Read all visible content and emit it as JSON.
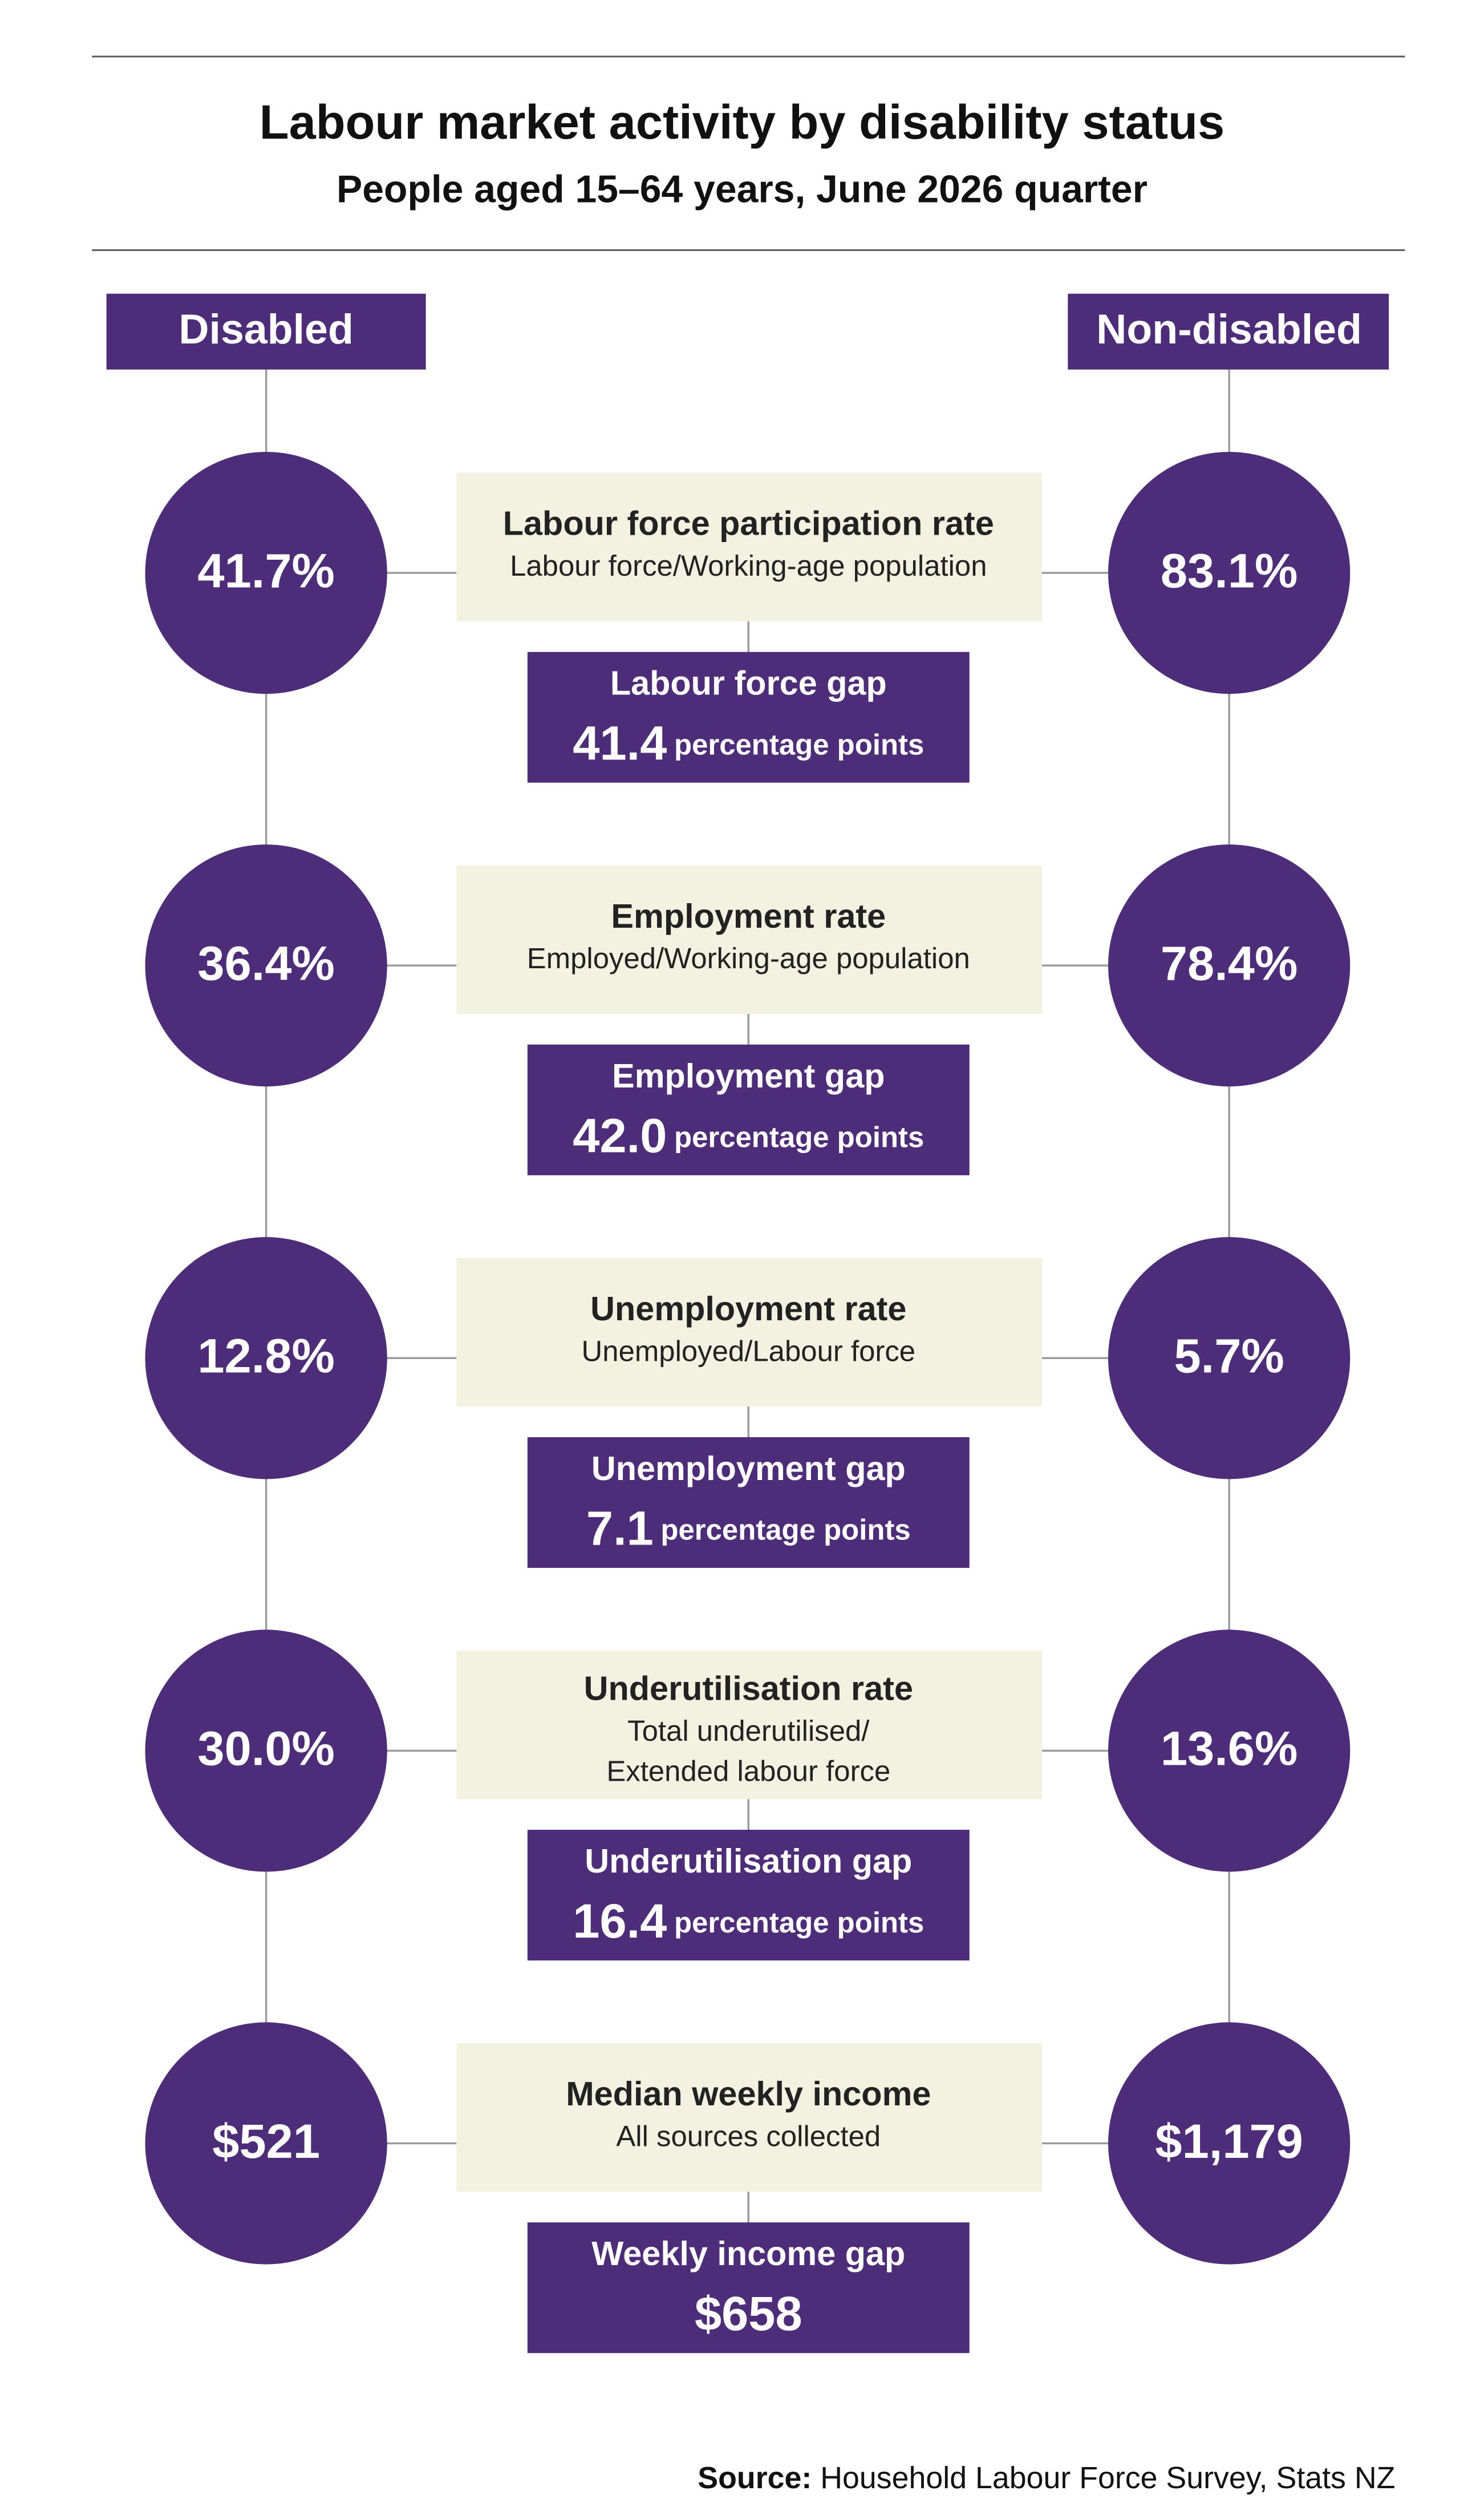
{
  "header": {
    "title": "Labour market activity by disability status",
    "subtitle": "People aged 15–64 years, June 2026 quarter"
  },
  "columns": {
    "left": "Disabled",
    "right": "Non-disabled"
  },
  "rows": [
    {
      "label": "Labour force participation rate",
      "description": [
        "Labour force/Working-age population"
      ],
      "left": "41.7%",
      "right": "83.1%",
      "gap_title": "Labour force gap",
      "gap_value": "41.4",
      "gap_unit": "percentage points"
    },
    {
      "label": "Employment rate",
      "description": [
        "Employed/Working-age population"
      ],
      "left": "36.4%",
      "right": "78.4%",
      "gap_title": "Employment gap",
      "gap_value": "42.0",
      "gap_unit": "percentage points"
    },
    {
      "label": "Unemployment rate",
      "description": [
        "Unemployed/Labour force"
      ],
      "left": "12.8%",
      "right": "5.7%",
      "gap_title": "Unemployment gap",
      "gap_value": "7.1",
      "gap_unit": "percentage points"
    },
    {
      "label": "Underutilisation rate",
      "description": [
        "Total underutilised/",
        "Extended labour force"
      ],
      "left": "30.0%",
      "right": "13.6%",
      "gap_title": "Underutilisation gap",
      "gap_value": "16.4",
      "gap_unit": "percentage points"
    },
    {
      "label": "Median weekly income",
      "description": [
        "All sources collected"
      ],
      "left": "$521",
      "right": "$1,179",
      "gap_title": "Weekly income gap",
      "gap_value": "$658"
    }
  ],
  "source": {
    "label": "Source:",
    "text": "Household Labour Force Survey, Stats NZ"
  }
}
